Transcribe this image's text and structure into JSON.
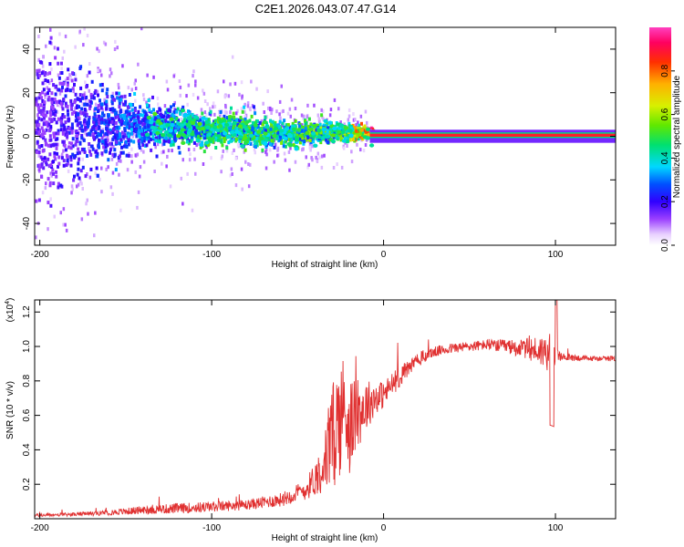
{
  "title": "C2E1.2026.043.07.47.G14",
  "chart_data": [
    {
      "type": "heatmap",
      "name": "spectrogram",
      "xlabel": "Height of straight line (km)",
      "ylabel": "Frequency (Hz)",
      "xlim": [
        -203,
        135
      ],
      "ylim": [
        -50,
        50
      ],
      "xticks": [
        -200,
        -100,
        0,
        100
      ],
      "xtick_labels": [
        "-200",
        "-100",
        "0",
        "100"
      ],
      "yticks": [
        -40,
        -20,
        0,
        20,
        40
      ],
      "ytick_labels": [
        "-40",
        "-20",
        "0",
        "20",
        "40"
      ],
      "colorbar": {
        "label": "Normalized spectral amplitude",
        "range": [
          0.0,
          1.0
        ],
        "ticks": [
          0.0,
          0.2,
          0.4,
          0.6,
          0.8
        ],
        "tick_labels": [
          "0.0",
          "0.2",
          "0.4",
          "0.6",
          "0.8"
        ]
      },
      "description_points": [
        {
          "x": -200,
          "freq_center": 6,
          "spread": 45,
          "amplitude": 0.15
        },
        {
          "x": -140,
          "freq_center": 5,
          "spread": 12,
          "amplitude": 0.3
        },
        {
          "x": -100,
          "freq_center": 3,
          "spread": 10,
          "amplitude": 0.45
        },
        {
          "x": -60,
          "freq_center": 1,
          "spread": 8,
          "amplitude": 0.45
        },
        {
          "x": -25,
          "freq_center": 2,
          "spread": 5,
          "amplitude": 0.5
        },
        {
          "x": 0,
          "freq_center": 1,
          "spread": 2,
          "amplitude": 0.95
        },
        {
          "x": 135,
          "freq_center": 0.5,
          "spread": 1,
          "amplitude": 1.0
        }
      ]
    },
    {
      "type": "line",
      "name": "snr",
      "xlabel": "Height of straight line (km)",
      "ylabel": "SNR (10 * v/v)",
      "y_multiplier": "(x10⁴)",
      "y_multiplier_base": "(x10",
      "y_multiplier_exp": "4",
      "y_multiplier_close": ")",
      "xlim": [
        -203,
        135
      ],
      "ylim": [
        0.0,
        1.27
      ],
      "xticks": [
        -200,
        -100,
        0,
        100
      ],
      "xtick_labels": [
        "-200",
        "-100",
        "0",
        "100"
      ],
      "yticks": [
        0.2,
        0.4,
        0.6,
        0.8,
        1.0,
        1.2
      ],
      "ytick_labels": [
        "0.2",
        "0.4",
        "0.6",
        "0.8",
        "1.0",
        "1.2"
      ],
      "color": "#e03030",
      "series": [
        {
          "name": "SNR",
          "x": [
            -203,
            -180,
            -160,
            -140,
            -120,
            -100,
            -80,
            -60,
            -45,
            -38,
            -33,
            -30,
            -27,
            -24,
            -22,
            -20,
            -17,
            -14,
            -10,
            -5,
            0,
            5,
            10,
            15,
            20,
            25,
            30,
            40,
            50,
            60,
            70,
            80,
            88,
            94,
            98,
            100,
            104,
            110,
            120,
            135
          ],
          "y": [
            0.02,
            0.025,
            0.035,
            0.05,
            0.06,
            0.07,
            0.08,
            0.11,
            0.17,
            0.26,
            0.36,
            0.46,
            0.56,
            0.62,
            0.63,
            0.55,
            0.58,
            0.62,
            0.66,
            0.7,
            0.72,
            0.78,
            0.83,
            0.88,
            0.92,
            0.95,
            0.97,
            0.99,
            1.0,
            1.01,
            1.0,
            0.99,
            0.98,
            0.97,
            0.96,
            0.95,
            0.94,
            0.935,
            0.93,
            0.93
          ],
          "noise": [
            0.01,
            0.01,
            0.015,
            0.025,
            0.03,
            0.03,
            0.03,
            0.04,
            0.06,
            0.12,
            0.2,
            0.3,
            0.35,
            0.35,
            0.3,
            0.3,
            0.22,
            0.2,
            0.15,
            0.1,
            0.08,
            0.07,
            0.06,
            0.05,
            0.04,
            0.04,
            0.03,
            0.03,
            0.03,
            0.03,
            0.04,
            0.05,
            0.08,
            0.1,
            0.12,
            0.05,
            0.02,
            0.02,
            0.015,
            0.015
          ]
        }
      ]
    }
  ]
}
